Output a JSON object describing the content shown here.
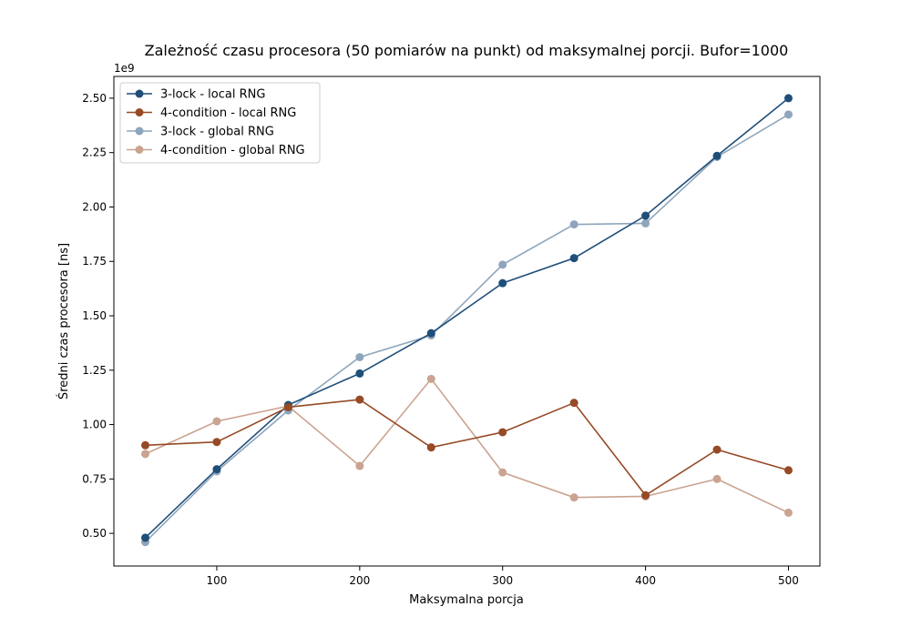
{
  "chart_data": {
    "type": "line",
    "title": "Zależność czasu procesora (50 pomiarów na punkt) od maksymalnej porcji. Bufor=1000",
    "xlabel": "Maksymalna porcja",
    "ylabel": "Średni czas procesora [ns]",
    "y_offset_label": "1e9",
    "y_scale": 1000000000,
    "xlim": [
      28,
      522
    ],
    "ylim": [
      0.35,
      2.6
    ],
    "x_ticks": [
      100,
      200,
      300,
      400,
      500
    ],
    "x_tick_labels": [
      "100",
      "200",
      "300",
      "400",
      "500"
    ],
    "y_ticks": [
      0.5,
      0.75,
      1.0,
      1.25,
      1.5,
      1.75,
      2.0,
      2.25,
      2.5
    ],
    "y_tick_labels": [
      "0.50",
      "0.75",
      "1.00",
      "1.25",
      "1.50",
      "1.75",
      "2.00",
      "2.25",
      "2.50"
    ],
    "grid": false,
    "legend_position": "top-left",
    "x": [
      50,
      100,
      150,
      200,
      250,
      300,
      350,
      400,
      450,
      500
    ],
    "series": [
      {
        "name": "3-lock - local RNG",
        "color": "#1f4e79",
        "opacity": 1.0,
        "values": [
          0.48,
          0.795,
          1.09,
          1.235,
          1.42,
          1.65,
          1.765,
          1.96,
          2.235,
          2.5
        ]
      },
      {
        "name": "4-condition - local RNG",
        "color": "#964a26",
        "opacity": 1.0,
        "values": [
          0.905,
          0.92,
          1.08,
          1.115,
          0.895,
          0.965,
          1.1,
          0.675,
          0.885,
          0.79
        ]
      },
      {
        "name": "3-lock - global RNG",
        "color": "#1f4e79",
        "opacity": 0.5,
        "values": [
          0.46,
          0.785,
          1.065,
          1.31,
          1.41,
          1.735,
          1.92,
          1.925,
          2.23,
          2.425
        ]
      },
      {
        "name": "4-condition - global RNG",
        "color": "#964a26",
        "opacity": 0.5,
        "values": [
          0.865,
          1.015,
          1.085,
          0.81,
          1.21,
          0.78,
          0.665,
          0.67,
          0.75,
          0.595
        ]
      }
    ]
  }
}
